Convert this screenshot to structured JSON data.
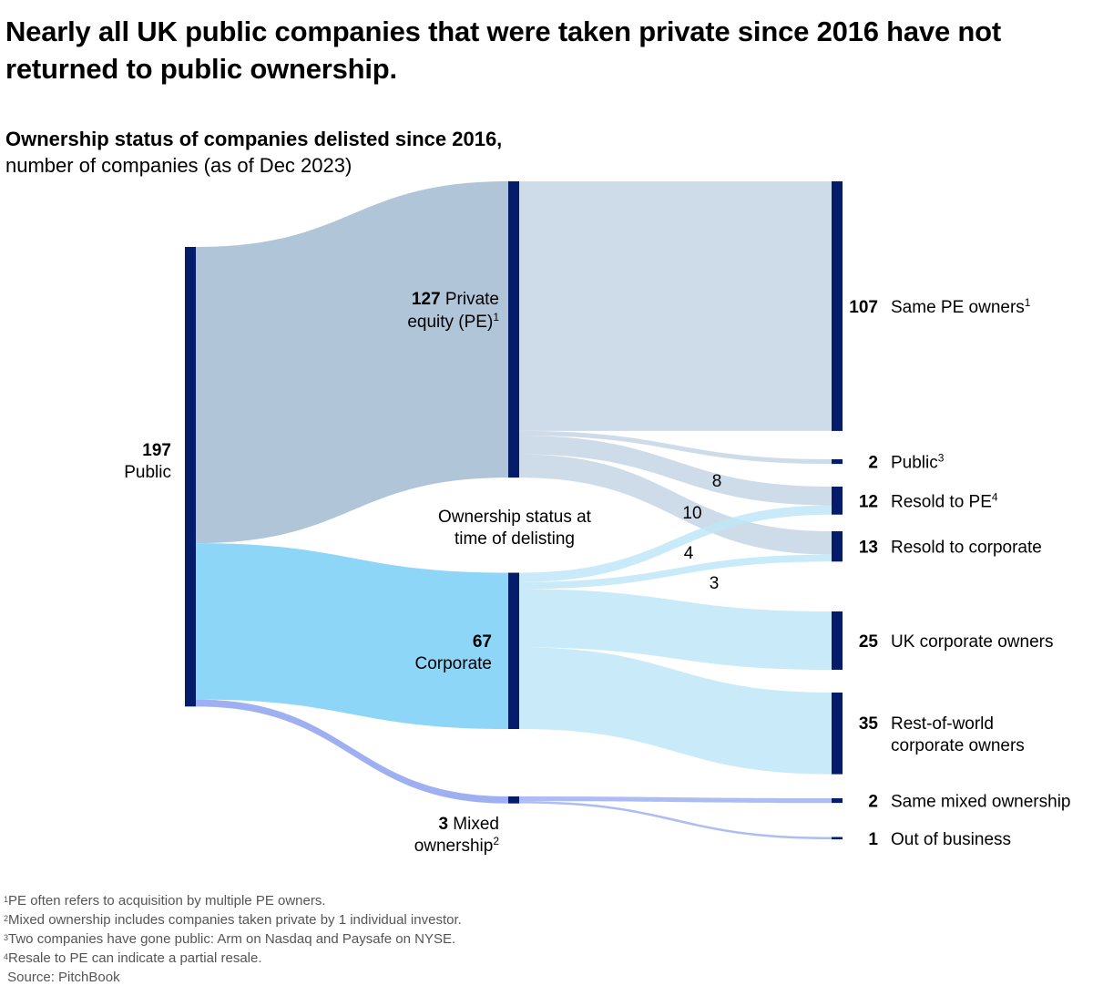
{
  "title": "Nearly all UK public companies that were taken private since 2016 have not returned to public ownership.",
  "subtitle_bold": "Ownership status of companies delisted since 2016,",
  "subtitle_rest": "number of companies (as of Dec 2023)",
  "colors": {
    "node": "#051c6b",
    "pe_flow": "#b1c5d9",
    "pe_out_flow": "#c6d6e5",
    "corp_flow": "#8ed6f7",
    "corp_out_flow": "#bfe6f8",
    "mixed_flow": "#9fb0f2"
  },
  "chart_data": {
    "type": "sankey",
    "title": "Ownership status of companies delisted since 2016, number of companies (as of Dec 2023)",
    "middle_label": "Ownership status at time of delisting",
    "nodes": [
      {
        "id": "public",
        "column": 0,
        "value": 197,
        "label": "Public"
      },
      {
        "id": "pe",
        "column": 1,
        "value": 127,
        "label": "Private equity (PE)",
        "sup": "1"
      },
      {
        "id": "corporate",
        "column": 1,
        "value": 67,
        "label": "Corporate"
      },
      {
        "id": "mixed",
        "column": 1,
        "value": 3,
        "label": "Mixed ownership",
        "sup": "2"
      },
      {
        "id": "same_pe",
        "column": 2,
        "value": 107,
        "label": "Same PE owners",
        "sup": "1"
      },
      {
        "id": "public_again",
        "column": 2,
        "value": 2,
        "label": "Public",
        "sup": "3"
      },
      {
        "id": "resold_pe",
        "column": 2,
        "value": 12,
        "label": "Resold to PE",
        "sup": "4"
      },
      {
        "id": "resold_corp",
        "column": 2,
        "value": 13,
        "label": "Resold to corporate"
      },
      {
        "id": "uk_corp",
        "column": 2,
        "value": 25,
        "label": "UK corporate owners"
      },
      {
        "id": "row_corp",
        "column": 2,
        "value": 35,
        "label": "Rest-of-world corporate owners"
      },
      {
        "id": "same_mixed",
        "column": 2,
        "value": 2,
        "label": "Same mixed ownership"
      },
      {
        "id": "oob",
        "column": 2,
        "value": 1,
        "label": "Out of business"
      }
    ],
    "links": [
      {
        "source": "public",
        "target": "pe",
        "value": 127
      },
      {
        "source": "public",
        "target": "corporate",
        "value": 67
      },
      {
        "source": "public",
        "target": "mixed",
        "value": 3
      },
      {
        "source": "pe",
        "target": "same_pe",
        "value": 107
      },
      {
        "source": "pe",
        "target": "public_again",
        "value": 2
      },
      {
        "source": "pe",
        "target": "resold_pe",
        "value": 8,
        "label": "8"
      },
      {
        "source": "pe",
        "target": "resold_corp",
        "value": 10,
        "label": "10"
      },
      {
        "source": "corporate",
        "target": "resold_pe",
        "value": 4,
        "label": "4"
      },
      {
        "source": "corporate",
        "target": "resold_corp",
        "value": 3,
        "label": "3"
      },
      {
        "source": "corporate",
        "target": "uk_corp",
        "value": 25
      },
      {
        "source": "corporate",
        "target": "row_corp",
        "value": 35
      },
      {
        "source": "mixed",
        "target": "same_mixed",
        "value": 2
      },
      {
        "source": "mixed",
        "target": "oob",
        "value": 1
      }
    ]
  },
  "footnotes": [
    {
      "sup": "1",
      "text": "PE often refers to acquisition by multiple PE owners."
    },
    {
      "sup": "2",
      "text": "Mixed ownership includes companies taken private by 1 individual investor."
    },
    {
      "sup": "3",
      "text": "Two companies have gone public: Arm on Nasdaq and Paysafe on NYSE."
    },
    {
      "sup": "4",
      "text": "Resale to PE can indicate a partial resale."
    }
  ],
  "source": "Source: PitchBook"
}
